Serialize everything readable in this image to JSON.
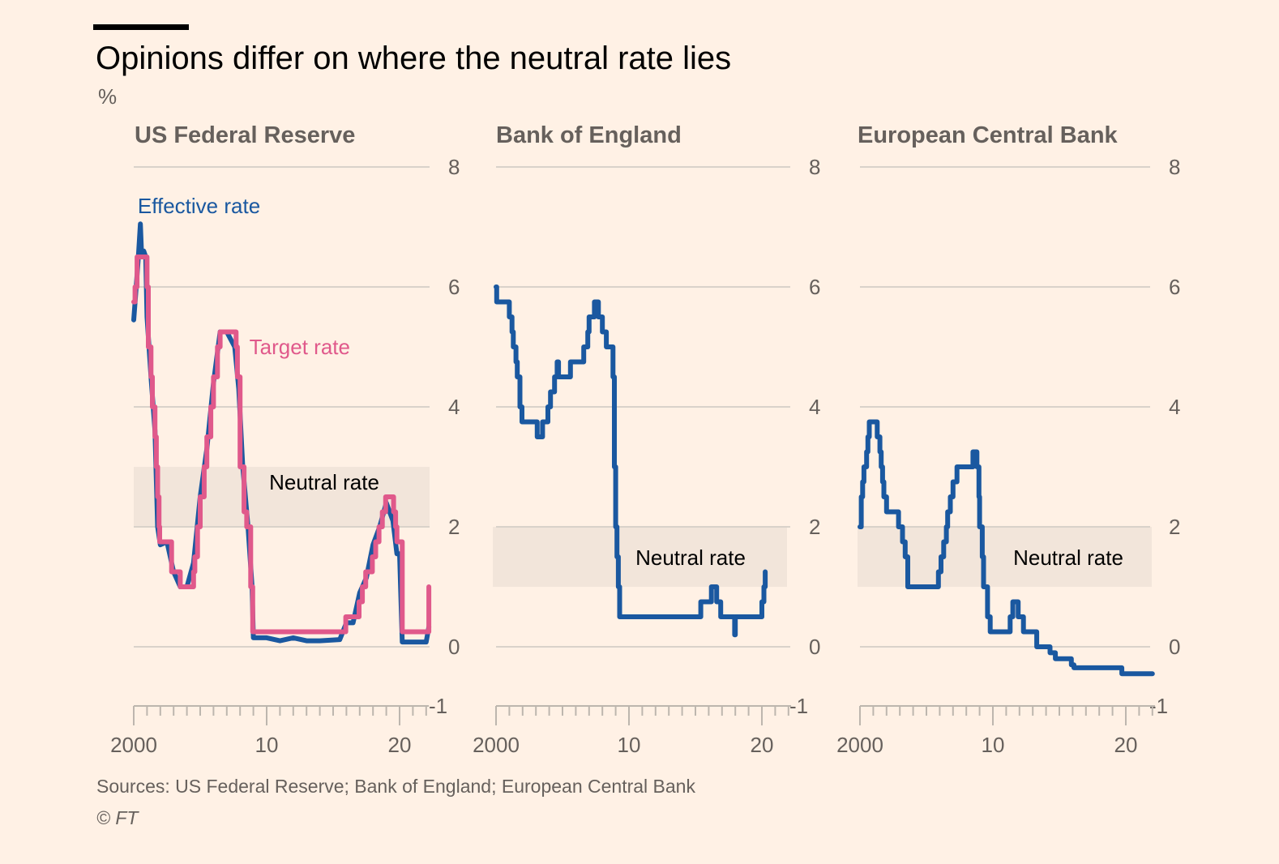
{
  "header": {
    "title": "Opinions differ on where the neutral rate lies",
    "unit": "%"
  },
  "footer": {
    "source": "Sources: US Federal Reserve; Bank of England; European Central Bank",
    "copyright": "© FT"
  },
  "colors": {
    "effective": "#1a58a0",
    "target": "#e0598b",
    "band": "#f2e5da",
    "grid": "#d9d2ca",
    "axis_text": "#66605c",
    "panel_title": "#66605c"
  },
  "chart_data": [
    {
      "type": "line",
      "title": "US Federal Reserve",
      "ylim": [
        -1,
        8
      ],
      "yticks": [
        8,
        6,
        4,
        2,
        0,
        -1
      ],
      "xlim": [
        2000,
        2022.2
      ],
      "xticks": [
        2000,
        2010,
        2020
      ],
      "xtick_labels": [
        "2000",
        "10",
        "20"
      ],
      "grid": true,
      "band": {
        "label": "Neutral rate",
        "range": [
          2,
          3
        ]
      },
      "series": [
        {
          "name": "Effective rate",
          "step": false,
          "points": [
            [
              2000,
              5.45
            ],
            [
              2000.15,
              5.9
            ],
            [
              2000.35,
              6.5
            ],
            [
              2000.5,
              7.05
            ],
            [
              2000.6,
              6.5
            ],
            [
              2000.75,
              6.6
            ],
            [
              2000.9,
              6.5
            ],
            [
              2001.0,
              5.5
            ],
            [
              2001.3,
              4.5
            ],
            [
              2001.6,
              3.6
            ],
            [
              2001.8,
              2.0
            ],
            [
              2002.0,
              1.7
            ],
            [
              2002.5,
              1.75
            ],
            [
              2003.0,
              1.25
            ],
            [
              2003.5,
              1.0
            ],
            [
              2004.0,
              1.0
            ],
            [
              2004.5,
              1.4
            ],
            [
              2005.0,
              2.5
            ],
            [
              2005.5,
              3.3
            ],
            [
              2006.0,
              4.4
            ],
            [
              2006.5,
              5.25
            ],
            [
              2007.0,
              5.25
            ],
            [
              2007.6,
              5.0
            ],
            [
              2007.9,
              4.3
            ],
            [
              2008.2,
              3.0
            ],
            [
              2008.6,
              2.0
            ],
            [
              2008.9,
              1.0
            ],
            [
              2009.0,
              0.15
            ],
            [
              2010,
              0.15
            ],
            [
              2011,
              0.1
            ],
            [
              2012,
              0.15
            ],
            [
              2013,
              0.1
            ],
            [
              2014,
              0.1
            ],
            [
              2015.5,
              0.12
            ],
            [
              2016,
              0.4
            ],
            [
              2016.5,
              0.4
            ],
            [
              2017,
              0.9
            ],
            [
              2017.5,
              1.15
            ],
            [
              2018,
              1.7
            ],
            [
              2018.5,
              2.0
            ],
            [
              2019.0,
              2.4
            ],
            [
              2019.5,
              2.1
            ],
            [
              2019.8,
              1.55
            ],
            [
              2020.0,
              1.55
            ],
            [
              2020.2,
              0.08
            ],
            [
              2021,
              0.08
            ],
            [
              2022,
              0.08
            ],
            [
              2022.2,
              0.33
            ]
          ]
        },
        {
          "name": "Target rate",
          "step": true,
          "points": [
            [
              2000,
              5.75
            ],
            [
              2000.1,
              6.0
            ],
            [
              2000.25,
              6.5
            ],
            [
              2001.0,
              6.0
            ],
            [
              2001.1,
              5.0
            ],
            [
              2001.3,
              4.5
            ],
            [
              2001.4,
              4.0
            ],
            [
              2001.6,
              3.5
            ],
            [
              2001.7,
              3.0
            ],
            [
              2001.8,
              2.5
            ],
            [
              2001.9,
              2.0
            ],
            [
              2001.95,
              1.75
            ],
            [
              2002.85,
              1.25
            ],
            [
              2003.5,
              1.0
            ],
            [
              2004.5,
              1.25
            ],
            [
              2004.6,
              1.5
            ],
            [
              2004.8,
              2.0
            ],
            [
              2005.0,
              2.5
            ],
            [
              2005.3,
              3.0
            ],
            [
              2005.5,
              3.5
            ],
            [
              2005.8,
              4.0
            ],
            [
              2006.0,
              4.5
            ],
            [
              2006.3,
              5.0
            ],
            [
              2006.5,
              5.25
            ],
            [
              2007.7,
              5.0
            ],
            [
              2007.8,
              4.5
            ],
            [
              2008.0,
              3.0
            ],
            [
              2008.3,
              2.25
            ],
            [
              2008.5,
              2.0
            ],
            [
              2008.8,
              1.0
            ],
            [
              2008.95,
              0.25
            ],
            [
              2015.95,
              0.5
            ],
            [
              2016.95,
              0.75
            ],
            [
              2017.2,
              1.0
            ],
            [
              2017.45,
              1.25
            ],
            [
              2017.95,
              1.5
            ],
            [
              2018.2,
              1.75
            ],
            [
              2018.45,
              2.0
            ],
            [
              2018.7,
              2.25
            ],
            [
              2018.95,
              2.5
            ],
            [
              2019.55,
              2.25
            ],
            [
              2019.7,
              2.0
            ],
            [
              2019.8,
              1.75
            ],
            [
              2020.2,
              0.25
            ],
            [
              2022.2,
              0.5
            ],
            [
              2022.2,
              1.0
            ]
          ]
        }
      ],
      "annotations": [
        {
          "text": "Effective rate",
          "x": 2000.3,
          "y": 7.35
        },
        {
          "text": "Target rate",
          "x": 2008.7,
          "y": 5.0
        }
      ]
    },
    {
      "type": "line",
      "title": "Bank of England",
      "ylim": [
        -1,
        8
      ],
      "yticks": [
        8,
        6,
        4,
        2,
        0,
        -1
      ],
      "xlim": [
        2000,
        2022.2
      ],
      "xticks": [
        2000,
        2010,
        2020
      ],
      "xtick_labels": [
        "2000",
        "10",
        "20"
      ],
      "grid": true,
      "band": {
        "label": "Neutral rate",
        "range": [
          1,
          2
        ]
      },
      "series": [
        {
          "name": "",
          "step": true,
          "points": [
            [
              2000,
              6.0
            ],
            [
              2000.05,
              5.75
            ],
            [
              2001.0,
              5.5
            ],
            [
              2001.2,
              5.25
            ],
            [
              2001.3,
              5.0
            ],
            [
              2001.5,
              4.75
            ],
            [
              2001.6,
              4.5
            ],
            [
              2001.8,
              4.0
            ],
            [
              2001.95,
              3.75
            ],
            [
              2003.1,
              3.5
            ],
            [
              2003.5,
              3.75
            ],
            [
              2003.9,
              4.0
            ],
            [
              2004.1,
              4.25
            ],
            [
              2004.4,
              4.5
            ],
            [
              2004.6,
              4.75
            ],
            [
              2004.7,
              4.5
            ],
            [
              2005.6,
              4.75
            ],
            [
              2006.6,
              5.0
            ],
            [
              2006.9,
              5.25
            ],
            [
              2007.0,
              5.5
            ],
            [
              2007.4,
              5.75
            ],
            [
              2007.7,
              5.5
            ],
            [
              2008.0,
              5.25
            ],
            [
              2008.3,
              5.0
            ],
            [
              2008.8,
              4.5
            ],
            [
              2008.9,
              3.0
            ],
            [
              2009.0,
              2.0
            ],
            [
              2009.1,
              1.5
            ],
            [
              2009.2,
              1.0
            ],
            [
              2009.3,
              0.5
            ],
            [
              2015.0,
              0.5
            ],
            [
              2015.4,
              0.75
            ],
            [
              2016.0,
              0.75
            ],
            [
              2016.2,
              1.0
            ],
            [
              2016.6,
              0.75
            ],
            [
              2016.9,
              0.5
            ],
            [
              2017.9,
              0.5
            ],
            [
              2017.95,
              0.2
            ],
            [
              2018.0,
              0.5
            ],
            [
              2019.9,
              0.5
            ],
            [
              2020.0,
              0.75
            ],
            [
              2020.15,
              1.0
            ],
            [
              2020.25,
              1.25
            ]
          ]
        }
      ],
      "annotations": []
    },
    {
      "type": "line",
      "title": "European Central Bank",
      "ylim": [
        -1,
        8
      ],
      "yticks": [
        8,
        6,
        4,
        2,
        0,
        -1
      ],
      "xlim": [
        2000,
        2022.2
      ],
      "xticks": [
        2000,
        2010,
        2020
      ],
      "xtick_labels": [
        "2000",
        "10",
        "20"
      ],
      "grid": true,
      "band": {
        "label": "Neutral rate",
        "range": [
          1,
          2
        ]
      },
      "series": [
        {
          "name": "",
          "step": true,
          "points": [
            [
              2000,
              2.0
            ],
            [
              2000.1,
              2.5
            ],
            [
              2000.2,
              2.75
            ],
            [
              2000.3,
              3.0
            ],
            [
              2000.5,
              3.25
            ],
            [
              2000.6,
              3.5
            ],
            [
              2000.7,
              3.75
            ],
            [
              2001.3,
              3.5
            ],
            [
              2001.5,
              3.25
            ],
            [
              2001.6,
              3.0
            ],
            [
              2001.7,
              2.75
            ],
            [
              2001.8,
              2.5
            ],
            [
              2002.0,
              2.25
            ],
            [
              2002.9,
              2.0
            ],
            [
              2003.2,
              1.75
            ],
            [
              2003.4,
              1.5
            ],
            [
              2003.6,
              1.0
            ],
            [
              2005.9,
              1.25
            ],
            [
              2006.1,
              1.5
            ],
            [
              2006.3,
              1.75
            ],
            [
              2006.5,
              2.0
            ],
            [
              2006.6,
              2.25
            ],
            [
              2006.8,
              2.5
            ],
            [
              2007.0,
              2.75
            ],
            [
              2007.3,
              3.0
            ],
            [
              2007.6,
              3.0
            ],
            [
              2008.5,
              3.25
            ],
            [
              2008.8,
              3.0
            ],
            [
              2008.95,
              2.5
            ],
            [
              2009.0,
              2.0
            ],
            [
              2009.2,
              1.5
            ],
            [
              2009.3,
              1.0
            ],
            [
              2009.6,
              0.5
            ],
            [
              2009.8,
              0.25
            ],
            [
              2011.3,
              0.5
            ],
            [
              2011.5,
              0.75
            ],
            [
              2011.9,
              0.5
            ],
            [
              2012.3,
              0.25
            ],
            [
              2013.3,
              0.0
            ],
            [
              2014.0,
              0.0
            ],
            [
              2014.3,
              -0.1
            ],
            [
              2014.7,
              -0.2
            ],
            [
              2015.9,
              -0.3
            ],
            [
              2016.1,
              -0.35
            ],
            [
              2019.7,
              -0.45
            ],
            [
              2022.0,
              -0.45
            ]
          ]
        }
      ],
      "annotations": []
    }
  ]
}
